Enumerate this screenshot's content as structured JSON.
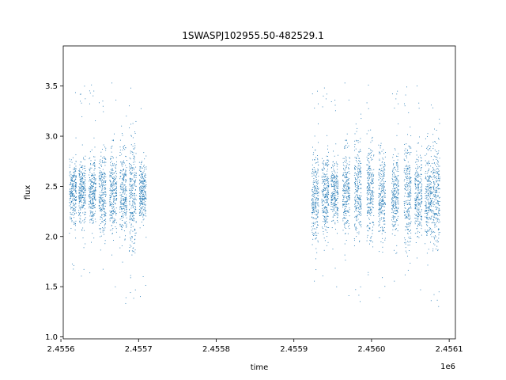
{
  "chart_data": {
    "type": "scatter",
    "title": "1SWASPJ102955.50-482529.1",
    "xlabel": "time",
    "ylabel": "flux",
    "x_offset_label": "1e6",
    "xlim": [
      2455603,
      2456108
    ],
    "ylim": [
      0.98,
      3.9
    ],
    "x_ticks": [
      2455600,
      2455700,
      2455800,
      2455900,
      2456000,
      2456100
    ],
    "x_tick_labels": [
      "2.4556",
      "2.4557",
      "2.4558",
      "2.4559",
      "2.4560",
      "2.4561"
    ],
    "y_ticks": [
      1.0,
      1.5,
      2.0,
      2.5,
      3.0,
      3.5
    ],
    "y_tick_labels": [
      "1.0",
      "1.5",
      "2.0",
      "2.5",
      "3.0",
      "3.5"
    ],
    "grid": false,
    "marker_color": "#1f77b4",
    "clusters": [
      {
        "x": 2455615,
        "flux_center": 2.45,
        "flux_spread": 0.45
      },
      {
        "x": 2455627,
        "flux_center": 2.47,
        "flux_spread": 0.45
      },
      {
        "x": 2455640,
        "flux_center": 2.45,
        "flux_spread": 0.5
      },
      {
        "x": 2455653,
        "flux_center": 2.44,
        "flux_spread": 0.55
      },
      {
        "x": 2455667,
        "flux_center": 2.45,
        "flux_spread": 0.6
      },
      {
        "x": 2455680,
        "flux_center": 2.43,
        "flux_spread": 0.6
      },
      {
        "x": 2455692,
        "flux_center": 2.42,
        "flux_spread": 0.75
      },
      {
        "x": 2455705,
        "flux_center": 2.45,
        "flux_spread": 0.4
      },
      {
        "x": 2455927,
        "flux_center": 2.42,
        "flux_spread": 0.7
      },
      {
        "x": 2455940,
        "flux_center": 2.42,
        "flux_spread": 0.55
      },
      {
        "x": 2455952,
        "flux_center": 2.45,
        "flux_spread": 0.45
      },
      {
        "x": 2455967,
        "flux_center": 2.45,
        "flux_spread": 0.6
      },
      {
        "x": 2455982,
        "flux_center": 2.45,
        "flux_spread": 0.65
      },
      {
        "x": 2455998,
        "flux_center": 2.45,
        "flux_spread": 0.65
      },
      {
        "x": 2456013,
        "flux_center": 2.44,
        "flux_spread": 0.65
      },
      {
        "x": 2456030,
        "flux_center": 2.42,
        "flux_spread": 0.55
      },
      {
        "x": 2456046,
        "flux_center": 2.43,
        "flux_spread": 0.75
      },
      {
        "x": 2456060,
        "flux_center": 2.42,
        "flux_spread": 0.6
      },
      {
        "x": 2456073,
        "flux_center": 2.4,
        "flux_spread": 0.65
      },
      {
        "x": 2456083,
        "flux_center": 2.4,
        "flux_spread": 0.7
      }
    ]
  }
}
